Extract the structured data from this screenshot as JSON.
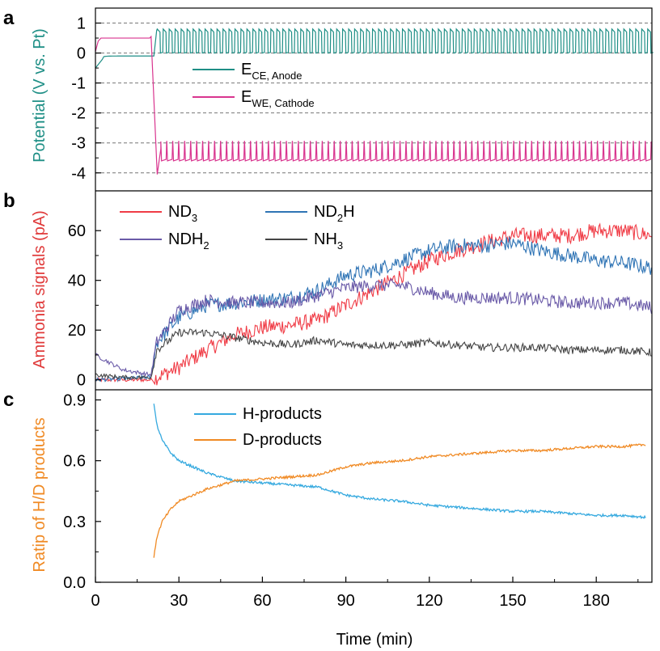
{
  "colors": {
    "ece": "#1f8f86",
    "ewe": "#d9358f",
    "nd3": "#f03c46",
    "nd2h": "#2f74b5",
    "ndh2": "#6a5aa8",
    "nh3": "#444444",
    "h_products": "#35a9df",
    "d_products": "#f08a24",
    "axis_a_label": "#1f8f86",
    "axis_b_label": "#e03a3a",
    "axis_c_label": "#f08a24"
  },
  "chart_data": [
    {
      "panel": "a",
      "type": "line",
      "ylabel": "Potential (V vs. Pt)",
      "ylim": [
        -4.6,
        1.5
      ],
      "yticks": [
        1,
        0,
        -1,
        -2,
        -3,
        -4
      ],
      "ytick_labels": [
        "1",
        "0",
        "-1",
        "-2",
        "-3",
        "-4"
      ],
      "xlim": [
        0,
        200
      ],
      "grid": "dashed horizontal",
      "legend": {
        "position": "middle",
        "items": [
          {
            "main": "E",
            "sub": "CE, Anode"
          },
          {
            "main": "E",
            "sub": "WE, Cathode"
          }
        ]
      },
      "series": [
        {
          "name": "E_CE, Anode",
          "description": "rises from -0.5 to -0.1 before 20 min, then oscillates between 0 and 0.8 V",
          "pre_switch": -0.1,
          "osc_low": 0.0,
          "osc_high": 0.75
        },
        {
          "name": "E_WE, Cathode",
          "description": "holds about 0.5 V until 20 min, drops to -4.0 V at 22 min, then oscillates between -3.6 and -2.9 V",
          "pre_switch": 0.5,
          "min": -4.05,
          "osc_low": -3.6,
          "osc_high": -2.95
        }
      ]
    },
    {
      "panel": "b",
      "type": "line",
      "ylabel": "Ammonia signals (pA)",
      "ylim": [
        -4,
        76
      ],
      "yticks": [
        0,
        20,
        40,
        60
      ],
      "ytick_labels": [
        "0",
        "20",
        "40",
        "60"
      ],
      "xlim": [
        0,
        200
      ],
      "legend": {
        "position": "top",
        "items": [
          {
            "main": "ND",
            "sub": "3",
            "tail": ""
          },
          {
            "main": "ND",
            "sub": "2",
            "tail": "H"
          },
          {
            "main": "NDH",
            "sub": "2",
            "tail": ""
          },
          {
            "main": "NH",
            "sub": "3",
            "tail": ""
          }
        ]
      },
      "series": [
        {
          "name": "ND3",
          "x": [
            0,
            20,
            22,
            30,
            40,
            50,
            60,
            70,
            80,
            90,
            100,
            110,
            120,
            130,
            140,
            150,
            160,
            170,
            180,
            190,
            200
          ],
          "values": [
            0,
            0,
            1,
            5,
            12,
            18,
            21,
            22,
            24,
            30,
            36,
            42,
            48,
            52,
            55,
            58,
            58,
            58,
            60,
            60,
            58
          ]
        },
        {
          "name": "ND2H",
          "x": [
            0,
            20,
            22,
            30,
            40,
            50,
            60,
            70,
            80,
            90,
            100,
            110,
            120,
            130,
            140,
            150,
            160,
            170,
            180,
            190,
            200
          ],
          "values": [
            0,
            1,
            15,
            25,
            30,
            31,
            32,
            33,
            36,
            42,
            44,
            48,
            52,
            54,
            54,
            55,
            52,
            50,
            48,
            47,
            45
          ]
        },
        {
          "name": "NDH2",
          "x": [
            0,
            10,
            20,
            22,
            30,
            40,
            50,
            60,
            70,
            80,
            90,
            100,
            110,
            120,
            130,
            140,
            150,
            160,
            170,
            180,
            190,
            200
          ],
          "values": [
            10,
            4,
            2,
            15,
            28,
            32,
            31,
            31,
            31,
            34,
            37,
            38,
            38,
            35,
            33,
            33,
            33,
            32,
            31,
            31,
            31,
            29
          ]
        },
        {
          "name": "NH3",
          "x": [
            0,
            10,
            20,
            22,
            30,
            40,
            50,
            60,
            70,
            80,
            90,
            100,
            110,
            120,
            130,
            140,
            150,
            160,
            170,
            180,
            190,
            200
          ],
          "values": [
            2,
            1,
            1,
            12,
            19,
            19,
            17,
            15,
            14,
            16,
            14,
            14,
            14,
            15,
            14,
            13,
            13,
            13,
            12,
            12,
            12,
            11
          ]
        }
      ]
    },
    {
      "panel": "c",
      "type": "line",
      "ylabel": "Ratip of H/D products",
      "ylim": [
        0,
        0.95
      ],
      "yticks": [
        0.0,
        0.3,
        0.6,
        0.9
      ],
      "ytick_labels": [
        "0.0",
        "0.3",
        "0.6",
        "0.9"
      ],
      "xlabel": "Time (min)",
      "xlim": [
        0,
        200
      ],
      "xticks": [
        0,
        30,
        60,
        90,
        120,
        150,
        180
      ],
      "xtick_labels": [
        "0",
        "30",
        "60",
        "90",
        "120",
        "150",
        "180"
      ],
      "legend": {
        "position": "top-center",
        "items": [
          {
            "main": "H-products"
          },
          {
            "main": "D-products"
          }
        ]
      },
      "series": [
        {
          "name": "H-products",
          "x": [
            21,
            22,
            24,
            27,
            30,
            35,
            40,
            45,
            50,
            60,
            70,
            80,
            90,
            100,
            110,
            120,
            130,
            140,
            150,
            160,
            170,
            180,
            190,
            198
          ],
          "values": [
            0.88,
            0.78,
            0.7,
            0.64,
            0.6,
            0.57,
            0.54,
            0.52,
            0.5,
            0.49,
            0.48,
            0.47,
            0.43,
            0.41,
            0.4,
            0.38,
            0.37,
            0.36,
            0.35,
            0.35,
            0.34,
            0.33,
            0.33,
            0.32
          ]
        },
        {
          "name": "D-products",
          "x": [
            21,
            22,
            24,
            27,
            30,
            35,
            40,
            45,
            50,
            60,
            70,
            80,
            90,
            100,
            110,
            120,
            130,
            140,
            150,
            160,
            170,
            180,
            190,
            198
          ],
          "values": [
            0.12,
            0.22,
            0.3,
            0.36,
            0.4,
            0.43,
            0.46,
            0.48,
            0.5,
            0.51,
            0.52,
            0.53,
            0.57,
            0.59,
            0.6,
            0.62,
            0.63,
            0.64,
            0.65,
            0.65,
            0.66,
            0.67,
            0.67,
            0.68
          ]
        }
      ]
    }
  ]
}
